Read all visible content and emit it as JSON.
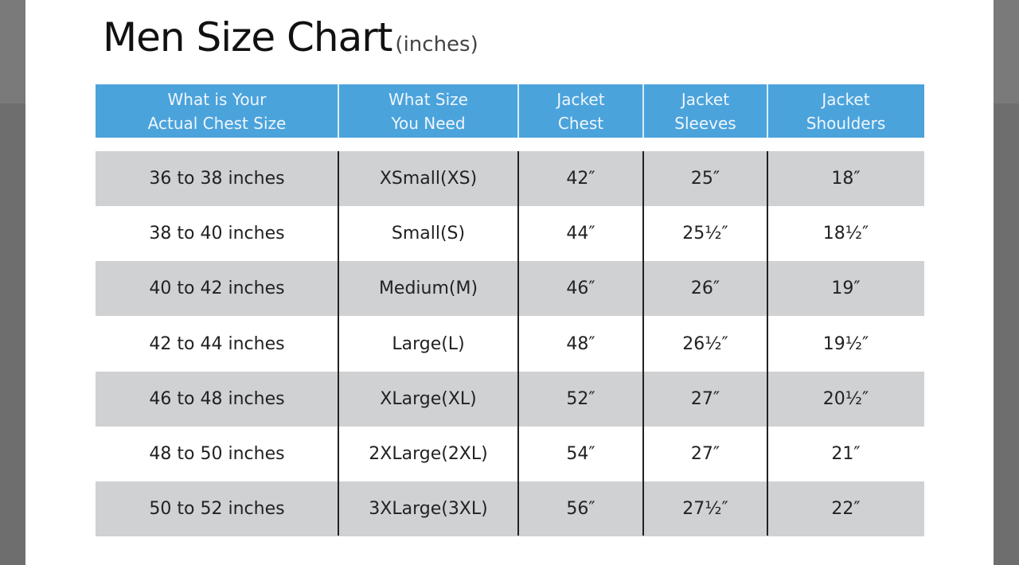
{
  "title": "Men Size Chart",
  "title_unit": "(inches)",
  "colors": {
    "header_bg": "#4ba3dc",
    "row_shade": "#d0d1d3",
    "backdrop": "#6e6e6e"
  },
  "headers": [
    "What is Your\nActual Chest Size",
    "What Size\nYou Need",
    "Jacket\nChest",
    "Jacket\nSleeves",
    "Jacket\nShoulders"
  ],
  "rows": [
    [
      "36 to 38 inches",
      "XSmall(XS)",
      "42″",
      "25″",
      "18″"
    ],
    [
      "38 to 40 inches",
      "Small(S)",
      "44″",
      "25½″",
      "18½″"
    ],
    [
      "40 to 42 inches",
      "Medium(M)",
      "46″",
      "26″",
      "19″"
    ],
    [
      "42 to 44 inches",
      "Large(L)",
      "48″",
      "26½″",
      "19½″"
    ],
    [
      "46 to 48 inches",
      "XLarge(XL)",
      "52″",
      "27″",
      "20½″"
    ],
    [
      "48 to 50 inches",
      "2XLarge(2XL)",
      "54″",
      "27″",
      "21″"
    ],
    [
      "50 to 52 inches",
      "3XLarge(3XL)",
      "56″",
      "27½″",
      "22″"
    ]
  ]
}
